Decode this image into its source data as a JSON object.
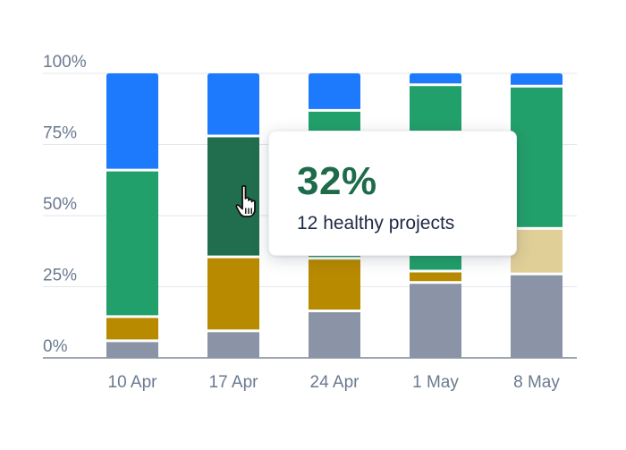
{
  "chart_data": {
    "type": "bar",
    "stacked": true,
    "categories": [
      "10 Apr",
      "17 Apr",
      "24 Apr",
      "1 May",
      "8 May"
    ],
    "ylim": [
      0,
      100
    ],
    "y_ticks": [
      "0%",
      "25%",
      "50%",
      "75%",
      "100%"
    ],
    "grid": true,
    "series": [
      {
        "color": "#8a94a6",
        "values": [
          6,
          9.5,
          16.5,
          26.5,
          29.5
        ]
      },
      {
        "color": "#b88a00",
        "values": [
          8.5,
          26,
          18.5,
          4,
          0
        ]
      },
      {
        "color": "#e1cf98",
        "values": [
          0,
          0,
          0,
          0,
          16
        ]
      },
      {
        "color": "#22a06b",
        "values": [
          51.5,
          0,
          52,
          65.5,
          50
        ]
      },
      {
        "color": "#216e4e",
        "values": [
          0,
          42.5,
          0,
          0,
          0
        ]
      },
      {
        "color": "#1d7afc",
        "values": [
          34,
          22,
          13,
          4,
          4.5
        ]
      }
    ],
    "tooltip": {
      "value": "32%",
      "caption": "12 healthy projects"
    }
  }
}
